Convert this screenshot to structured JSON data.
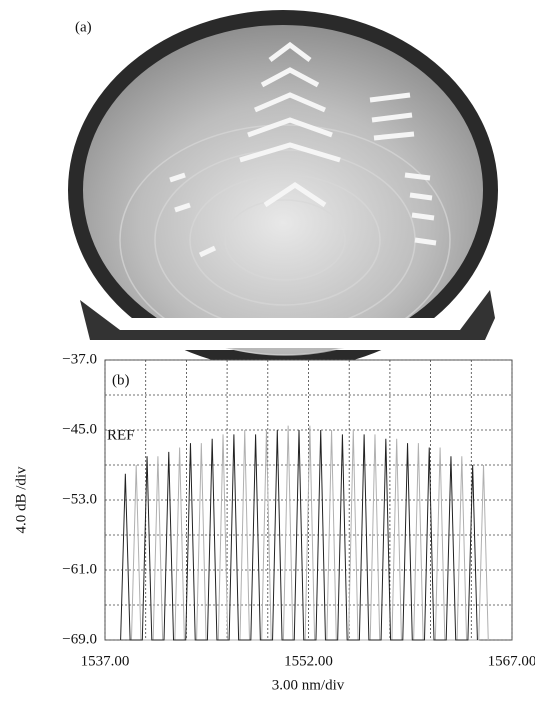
{
  "panel_a": {
    "label": "(a)"
  },
  "chart_data": {
    "type": "line",
    "panel_label": "(b)",
    "annotation": "REF",
    "xlabel": "3.00 nm/div",
    "ylabel": "4.0 dB /div",
    "xlim": [
      1537,
      1567
    ],
    "xticks": [
      {
        "value": 1537,
        "label": "1537.00"
      },
      {
        "value": 1552,
        "label": "1552.00"
      },
      {
        "value": 1567,
        "label": "1567.00"
      }
    ],
    "ylim": [
      -69,
      -37
    ],
    "yticks": [
      {
        "value": -69,
        "label": "−69.0"
      },
      {
        "value": -61,
        "label": "−61.0"
      },
      {
        "value": -53,
        "label": "−53.0"
      },
      {
        "value": -45,
        "label": "−45.0"
      },
      {
        "value": -37,
        "label": "−37.0"
      }
    ],
    "grid": true,
    "series": [
      {
        "color": "#222222",
        "x": [
          1538.15,
          1538.5,
          1538.85,
          1539.75,
          1540.1,
          1540.45,
          1541.35,
          1541.7,
          1542.05,
          1542.95,
          1543.3,
          1543.65,
          1544.55,
          1544.9,
          1545.25,
          1546.15,
          1546.5,
          1546.85,
          1547.75,
          1548.1,
          1548.45,
          1549.35,
          1549.7,
          1550.05,
          1550.95,
          1551.3,
          1551.65,
          1552.55,
          1552.9,
          1553.25,
          1554.15,
          1554.5,
          1554.85,
          1555.75,
          1556.1,
          1556.45,
          1557.35,
          1557.7,
          1558.05,
          1558.95,
          1559.3,
          1559.65,
          1560.55,
          1560.9,
          1561.25,
          1562.15,
          1562.5,
          1562.85,
          1563.75,
          1564.1,
          1564.45
        ],
        "values": [
          -69,
          -50,
          -69,
          -69,
          -48,
          -69,
          -69,
          -47.5,
          -69,
          -69,
          -46.5,
          -69,
          -69,
          -46,
          -69,
          -69,
          -45.5,
          -69,
          -69,
          -45.5,
          -69,
          -69,
          -45,
          -69,
          -69,
          -45,
          -69,
          -69,
          -45,
          -69,
          -69,
          -45.5,
          -69,
          -69,
          -45.5,
          -69,
          -69,
          -46,
          -69,
          -69,
          -46.5,
          -69,
          -69,
          -47,
          -69,
          -69,
          -48,
          -69,
          -69,
          -49,
          -69
        ]
      },
      {
        "color": "#b0b0b0",
        "x": [
          1538.95,
          1539.3,
          1539.65,
          1540.55,
          1540.9,
          1541.25,
          1542.15,
          1542.5,
          1542.85,
          1543.75,
          1544.1,
          1544.45,
          1545.35,
          1545.7,
          1546.05,
          1546.95,
          1547.3,
          1547.65,
          1548.55,
          1548.9,
          1549.25,
          1550.15,
          1550.5,
          1550.85,
          1551.75,
          1552.1,
          1552.45,
          1553.35,
          1553.7,
          1554.05,
          1554.95,
          1555.3,
          1555.65,
          1556.55,
          1556.9,
          1557.25,
          1558.15,
          1558.5,
          1558.85,
          1559.75,
          1560.1,
          1560.45,
          1561.35,
          1561.7,
          1562.05,
          1562.95,
          1563.3,
          1563.65,
          1564.55,
          1564.9,
          1565.25
        ],
        "values": [
          -69,
          -49,
          -69,
          -69,
          -48,
          -69,
          -69,
          -47,
          -69,
          -69,
          -46.5,
          -69,
          -69,
          -45.5,
          -69,
          -69,
          -45,
          -69,
          -69,
          -45,
          -69,
          -69,
          -44.5,
          -69,
          -69,
          -44.5,
          -69,
          -69,
          -45,
          -69,
          -69,
          -45,
          -69,
          -69,
          -45.5,
          -69,
          -69,
          -46,
          -69,
          -69,
          -46.5,
          -69,
          -69,
          -47,
          -69,
          -69,
          -48,
          -69,
          -69,
          -49,
          -69
        ]
      }
    ]
  }
}
